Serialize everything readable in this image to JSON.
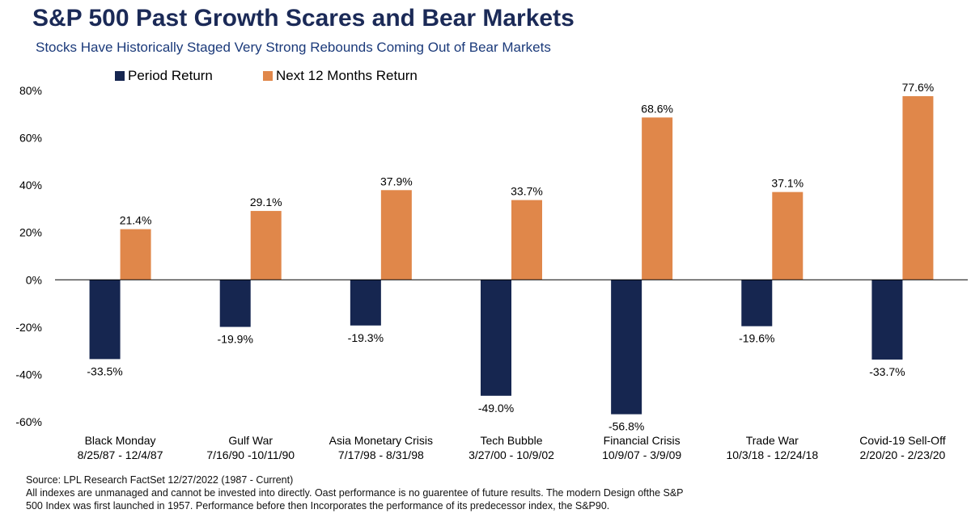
{
  "header": {
    "title": "S&P 500 Past Growth Scares and Bear Markets",
    "subtitle": "Stocks Have Historically Staged Very Strong Rebounds Coming Out of Bear Markets"
  },
  "footer": {
    "source": "Source: LPL Research FactSet 12/27/2022 (1987 - Current)",
    "disclaimer_line1": "All indexes are unmanaged and cannot be invested into directly. Oast performance is no guarentee of future results. The modern Design ofthe S&P",
    "disclaimer_line2": "500 Index was first launched in 1957. Performance before then Incorporates the performance of its predecessor index, the S&P90."
  },
  "chart_data": {
    "type": "bar",
    "categories": [
      [
        "Black Monday",
        "8/25/87 - 12/4/87"
      ],
      [
        "Gulf War",
        "7/16/90 -10/11/90"
      ],
      [
        "Asia Monetary Crisis",
        "7/17/98 - 8/31/98"
      ],
      [
        "Tech Bubble",
        "3/27/00 - 10/9/02"
      ],
      [
        "Financial Crisis",
        "10/9/07 - 3/9/09"
      ],
      [
        "Trade War",
        "10/3/18 - 12/24/18"
      ],
      [
        "Covid-19 Sell-Off",
        "2/20/20 - 2/23/20"
      ]
    ],
    "series": [
      {
        "name": "Period Return",
        "color": "#162650",
        "values": [
          -33.5,
          -19.9,
          -19.3,
          -49.0,
          -56.8,
          -19.6,
          -33.7
        ],
        "labels": [
          "-33.5%",
          "-19.9%",
          "-19.3%",
          "-49.0%",
          "-56.8%",
          "-19.6%",
          "-33.7%"
        ]
      },
      {
        "name": "Next 12 Months Return",
        "color": "#e0874a",
        "values": [
          21.4,
          29.1,
          37.9,
          33.7,
          68.6,
          37.1,
          77.6
        ],
        "labels": [
          "21.4%",
          "29.1%",
          "37.9%",
          "33.7%",
          "68.6%",
          "37.1%",
          "77.6%"
        ]
      }
    ],
    "yticks": [
      80,
      60,
      40,
      20,
      0,
      -20,
      -40,
      -60
    ],
    "ytick_labels": [
      "80%",
      "60%",
      "40%",
      "20%",
      "0%",
      "-20%",
      "-40%",
      "-60%"
    ],
    "ylim": [
      -60,
      80
    ],
    "legend_position": "top-left",
    "grid": false
  }
}
